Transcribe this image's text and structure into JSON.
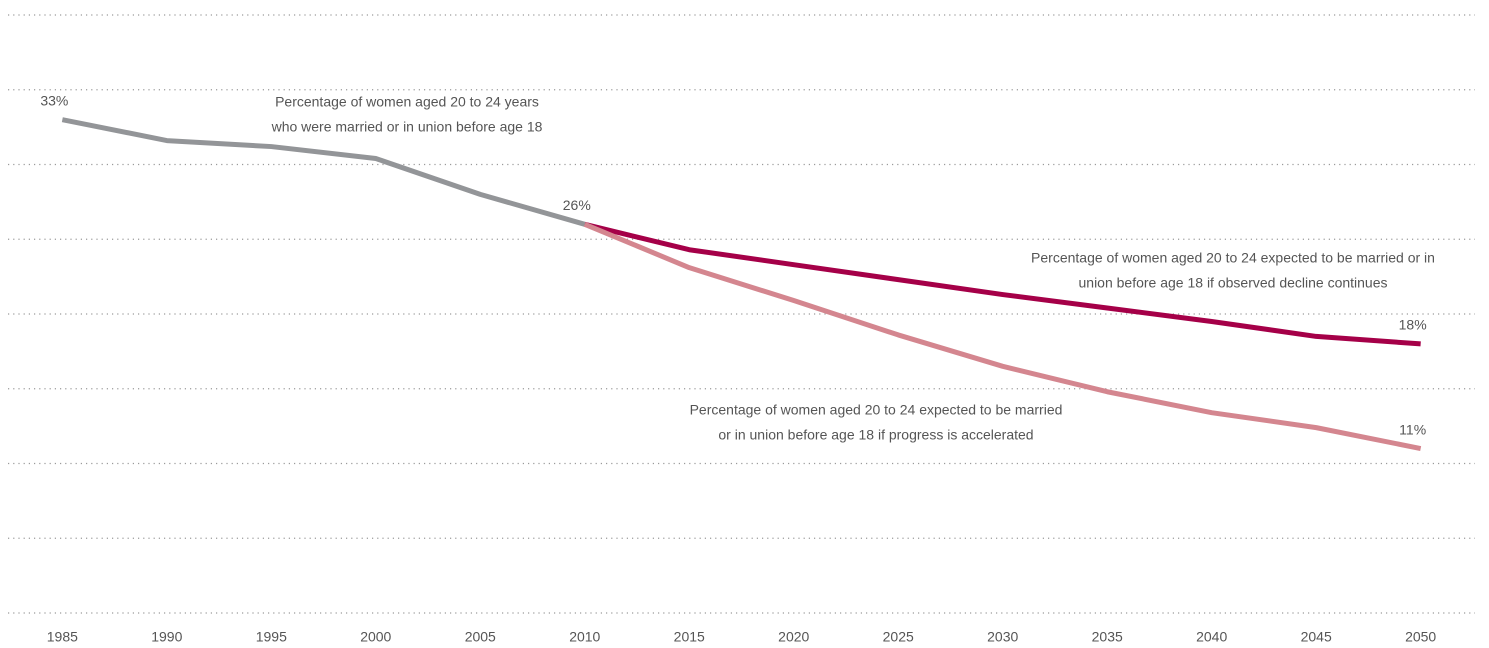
{
  "chart_data": {
    "type": "line",
    "xlim": [
      1982.4,
      2052.6
    ],
    "xticks": [
      1985,
      1990,
      1995,
      2000,
      2005,
      2010,
      2015,
      2020,
      2025,
      2030,
      2035,
      2040,
      2045,
      2050
    ],
    "ylim": [
      0,
      40
    ],
    "yticks": [
      0,
      5,
      10,
      15,
      20,
      25,
      30,
      35,
      40
    ],
    "grid": true,
    "series": [
      {
        "color": "#939598",
        "x": [
          1985,
          1990,
          1995,
          2000,
          2005,
          2010
        ],
        "values": [
          33,
          31.6,
          31.2,
          30.4,
          28,
          26
        ],
        "value_labels": [
          "33%",
          null,
          null,
          null,
          null,
          "26%"
        ]
      },
      {
        "color": "#a50048",
        "x": [
          2010,
          2015,
          2020,
          2025,
          2030,
          2035,
          2040,
          2045,
          2050
        ],
        "values": [
          26,
          24.3,
          23.3,
          22.3,
          21.3,
          20.4,
          19.5,
          18.5,
          18
        ],
        "value_labels": [
          null,
          null,
          null,
          null,
          null,
          null,
          null,
          null,
          "18%"
        ]
      },
      {
        "color": "#d4868f",
        "x": [
          2010,
          2015,
          2020,
          2025,
          2030,
          2035,
          2040,
          2045,
          2050
        ],
        "values": [
          26,
          23.1,
          20.9,
          18.6,
          16.5,
          14.8,
          13.4,
          12.4,
          11
        ],
        "value_labels": [
          null,
          null,
          null,
          null,
          null,
          null,
          null,
          null,
          "11%"
        ]
      }
    ],
    "annotations": [
      {
        "lines": [
          "Percentage of women aged 20 to 24 years",
          "who were married or in union before age 18"
        ]
      },
      {
        "lines": [
          "Percentage of women aged 20 to 24 expected to be married or in",
          "union before age 18 if observed decline continues"
        ]
      },
      {
        "lines": [
          "Percentage of women aged 20 to 24 expected to be married",
          "or in union before age 18 if progress is accelerated"
        ]
      }
    ]
  }
}
